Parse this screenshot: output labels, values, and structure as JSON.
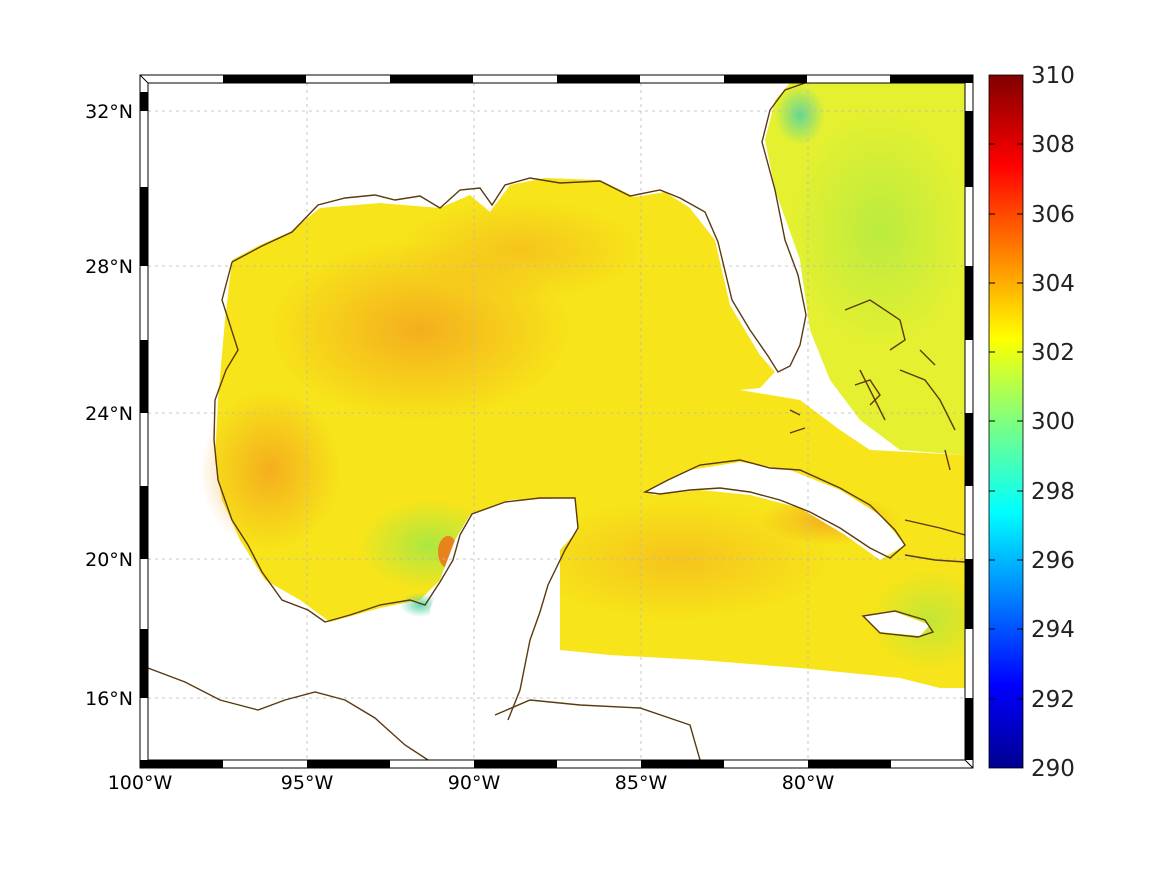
{
  "map": {
    "lon_labels": [
      "100°W",
      "95°W",
      "90°W",
      "85°W",
      "80°W"
    ],
    "lat_labels": [
      "32°N",
      "28°N",
      "24°N",
      "20°N",
      "16°N"
    ],
    "lon_range": [
      -100,
      -75
    ],
    "lat_range": [
      14.5,
      33
    ],
    "colors": {
      "coastline": "#5a3a10",
      "land": "#ffffff",
      "gridline": "#b8b8b8"
    }
  },
  "colorbar": {
    "min": 290,
    "max": 310,
    "tick_labels": [
      "310",
      "308",
      "306",
      "304",
      "302",
      "300",
      "298",
      "296",
      "294",
      "292",
      "290"
    ],
    "colormap": "jet"
  }
}
